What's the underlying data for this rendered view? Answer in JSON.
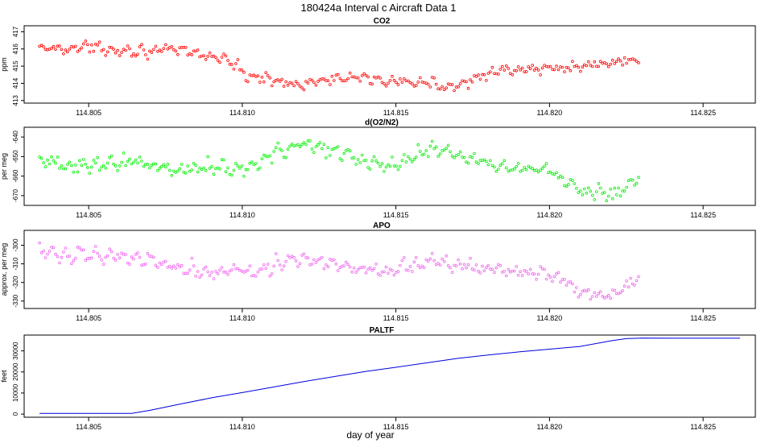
{
  "figure": {
    "title": "180424a   Interval c Aircraft Data 1",
    "xlabel": "day of year"
  },
  "chart_data": [
    {
      "type": "scatter",
      "title": "CO2",
      "ylabel": "ppm",
      "color": "#ff0000",
      "xlim": [
        114.8029,
        114.8267
      ],
      "ylim": [
        412.85,
        417.35
      ],
      "xticks": [
        114.805,
        114.81,
        114.815,
        114.82,
        114.825
      ],
      "xtick_labels": [
        "114.805",
        "114.810",
        "114.815",
        "114.820",
        "114.825"
      ],
      "yticks": [
        413,
        414,
        415,
        416,
        417
      ],
      "ytick_labels": [
        "413",
        "414",
        "415",
        "416",
        "417"
      ],
      "series": [
        {
          "name": "CO2",
          "x_start": 114.8034,
          "x_end": 114.8229,
          "n_points": 300,
          "noise": 0.28,
          "trend_x": [
            114.8034,
            114.805,
            114.8065,
            114.808,
            114.8095,
            114.8102,
            114.811,
            114.812,
            114.813,
            114.8145,
            114.816,
            114.8168,
            114.818,
            114.8195,
            114.821,
            114.8229
          ],
          "trend_y": [
            416.0,
            416.1,
            415.9,
            415.9,
            415.4,
            414.4,
            414.2,
            413.9,
            414.3,
            414.2,
            414.0,
            413.8,
            414.6,
            414.8,
            415.0,
            415.4
          ]
        }
      ]
    },
    {
      "type": "scatter",
      "title": "d(O2/N2)",
      "ylabel": "per meg",
      "color": "#00ee00",
      "xlim": [
        114.8029,
        114.8267
      ],
      "ylim": [
        -675,
        -635
      ],
      "xticks": [
        114.805,
        114.81,
        114.815,
        114.82,
        114.825
      ],
      "xtick_labels": [
        "114.805",
        "114.810",
        "114.815",
        "114.820",
        "114.825"
      ],
      "yticks": [
        -670,
        -660,
        -650,
        -640
      ],
      "ytick_labels": [
        "-670",
        "-660",
        "-650",
        "-640"
      ],
      "series": [
        {
          "name": "d(O2/N2)",
          "x_start": 114.8034,
          "x_end": 114.8229,
          "n_points": 300,
          "noise": 3.5,
          "trend_x": [
            114.8034,
            114.805,
            114.8065,
            114.8078,
            114.809,
            114.81,
            114.8112,
            114.812,
            114.8135,
            114.8148,
            114.8158,
            114.8165,
            114.8175,
            114.819,
            114.82,
            114.8208,
            114.822,
            114.8229
          ],
          "trend_y": [
            -653,
            -655,
            -652,
            -657,
            -655,
            -656,
            -648,
            -643,
            -650,
            -656,
            -647,
            -646,
            -651,
            -656,
            -657,
            -665,
            -670,
            -661
          ]
        }
      ]
    },
    {
      "type": "scatter",
      "title": "APO",
      "ylabel": "approx. per meg",
      "color": "#ee66ee",
      "xlim": [
        114.8029,
        114.8267
      ],
      "ylim": [
        -334,
        -292
      ],
      "xticks": [
        114.805,
        114.81,
        114.815,
        114.82,
        114.825
      ],
      "xtick_labels": [
        "114.805",
        "114.810",
        "114.815",
        "114.820",
        "114.825"
      ],
      "yticks": [
        -330,
        -320,
        -310,
        -300
      ],
      "ytick_labels": [
        "-330",
        "-320",
        "-310",
        "-300"
      ],
      "series": [
        {
          "name": "APO",
          "x_start": 114.8034,
          "x_end": 114.8229,
          "n_points": 300,
          "noise": 3.5,
          "trend_x": [
            114.8034,
            114.805,
            114.8065,
            114.808,
            114.809,
            114.8105,
            114.8118,
            114.813,
            114.8145,
            114.816,
            114.8175,
            114.819,
            114.82,
            114.821,
            114.822,
            114.8229
          ],
          "trend_y": [
            -304,
            -305,
            -306,
            -312,
            -314,
            -313,
            -307,
            -311,
            -314,
            -309,
            -312,
            -314,
            -316,
            -325,
            -327,
            -317
          ]
        }
      ]
    },
    {
      "type": "line",
      "title": "PALTF",
      "ylabel": "feet",
      "color": "#0000dd",
      "xlim": [
        114.8029,
        114.8267
      ],
      "ylim": [
        -1500,
        37500
      ],
      "xticks": [
        114.805,
        114.81,
        114.815,
        114.82,
        114.825
      ],
      "xtick_labels": [
        "114.805",
        "114.810",
        "114.815",
        "114.820",
        "114.825"
      ],
      "yticks": [
        0,
        10000,
        20000,
        30000
      ],
      "ytick_labels": [
        "0",
        "10000",
        "20000",
        "30000"
      ],
      "series": [
        {
          "name": "PALTF",
          "x": [
            114.8034,
            114.8046,
            114.8056,
            114.8064,
            114.807,
            114.808,
            114.809,
            114.81,
            114.811,
            114.812,
            114.813,
            114.814,
            114.815,
            114.816,
            114.817,
            114.818,
            114.819,
            114.82,
            114.821,
            114.822,
            114.8225,
            114.823,
            114.824,
            114.825,
            114.8262
          ],
          "y": [
            350,
            320,
            320,
            340,
            1800,
            4800,
            7700,
            10200,
            12800,
            15400,
            17800,
            20200,
            22200,
            24300,
            26400,
            28000,
            29500,
            30800,
            32100,
            34800,
            35800,
            36100,
            36000,
            36000,
            36000
          ]
        }
      ]
    }
  ]
}
